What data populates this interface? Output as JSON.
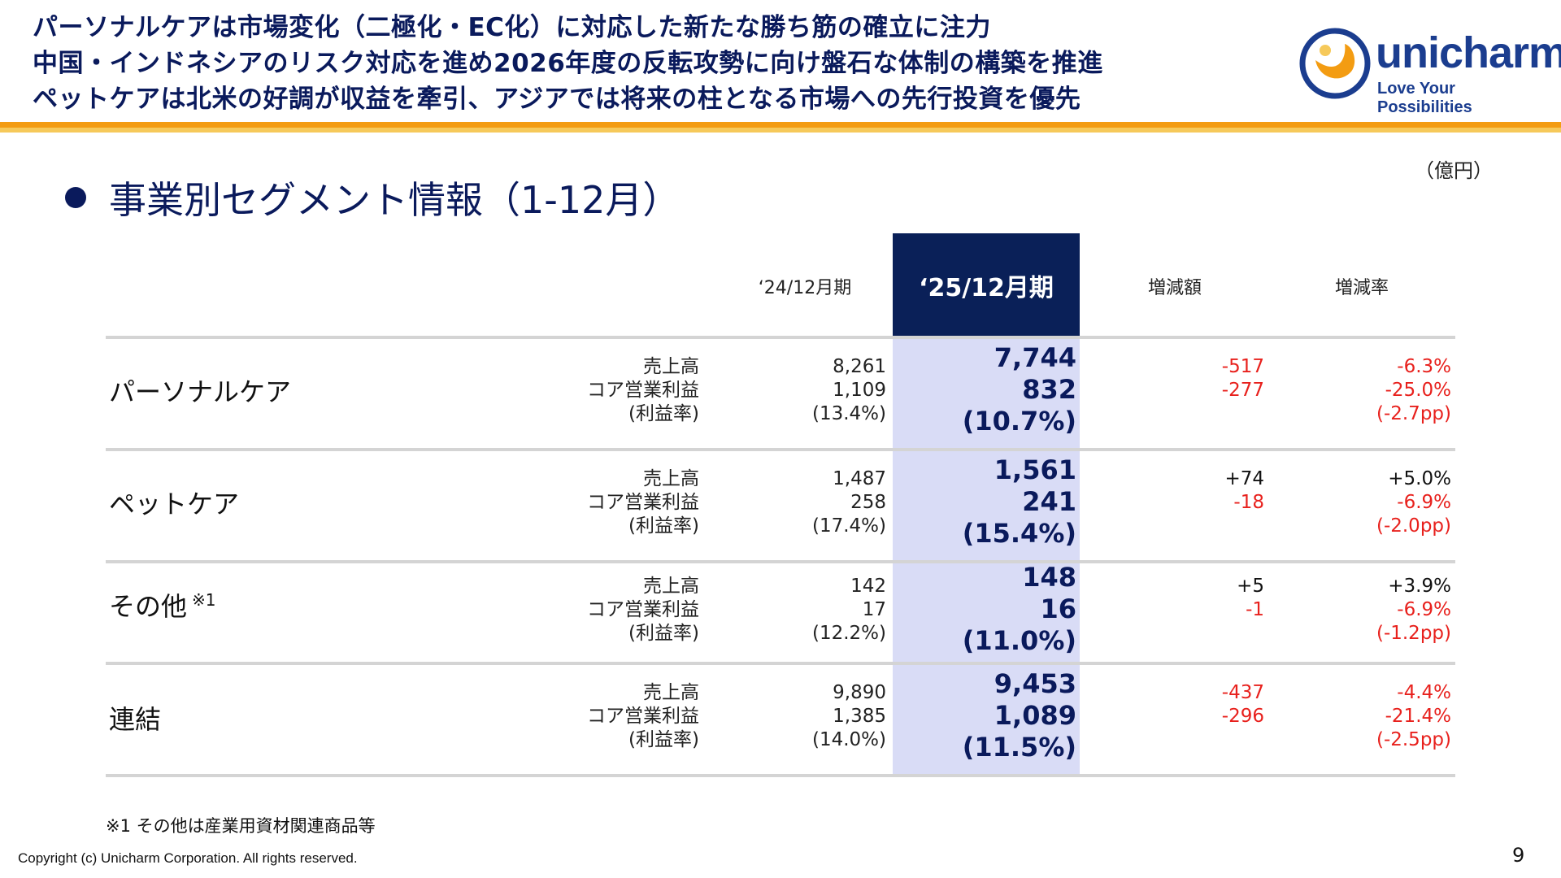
{
  "headline": [
    "パーソナルケアは市場変化（二極化・EC化）に対応した新たな勝ち筋の確立に注力",
    "中国・インドネシアのリスク対応を進め2026年度の反転攻勢に向け盤石な体制の構築を推進",
    "ペットケアは北米の好調が収益を牽引、アジアでは将来の柱となる市場への先行投資を優先"
  ],
  "logo": {
    "word": "unicharm",
    "tagline": "Love Your Possibilities",
    "brand_color": "#1b3d8f",
    "accent_color": "#f39c12"
  },
  "section_title": "事業別セグメント情報（1-12月）",
  "unit": "（億円）",
  "columns": {
    "prev": "‘24/12月期",
    "curr": "‘25/12月期",
    "diff": "増減額",
    "rate": "増減率"
  },
  "row_labels": {
    "sales": "売上高",
    "profit": "コア営業利益",
    "margin": "(利益率)"
  },
  "segments": [
    {
      "name": "パーソナルケア",
      "note": "",
      "prev": [
        "8,261",
        "1,109",
        "(13.4%)"
      ],
      "curr": [
        "7,744",
        "832",
        "(10.7%)"
      ],
      "diff": [
        "-517",
        "-277"
      ],
      "rate": [
        "-6.3%",
        "-25.0%",
        "(-2.7pp)"
      ]
    },
    {
      "name": "ペットケア",
      "note": "",
      "prev": [
        "1,487",
        "258",
        "(17.4%)"
      ],
      "curr": [
        "1,561",
        "241",
        "(15.4%)"
      ],
      "diff": [
        "+74",
        "-18"
      ],
      "rate": [
        "+5.0%",
        "-6.9%",
        "(-2.0pp)"
      ]
    },
    {
      "name": "その他",
      "note": "※1",
      "prev": [
        "142",
        "17",
        "(12.2%)"
      ],
      "curr": [
        "148",
        "16",
        "(11.0%)"
      ],
      "diff": [
        "+5",
        "-1"
      ],
      "rate": [
        "+3.9%",
        "-6.9%",
        "(-1.2pp)"
      ]
    },
    {
      "name": "連結",
      "note": "",
      "prev": [
        "9,890",
        "1,385",
        "(14.0%)"
      ],
      "curr": [
        "9,453",
        "1,089",
        "(11.5%)"
      ],
      "diff": [
        "-437",
        "-296"
      ],
      "rate": [
        "-4.4%",
        "-21.4%",
        "(-2.5pp)"
      ]
    }
  ],
  "footnote": "※1 その他は産業用資材関連商品等",
  "copyright": "Copyright (c) Unicharm Corporation. All rights reserved.",
  "page_number": "9",
  "colors": {
    "navy": "#0a1a5c",
    "highlight_col": "#d9dcf6",
    "negative": "#e8211d",
    "orange": "#f39c12"
  }
}
